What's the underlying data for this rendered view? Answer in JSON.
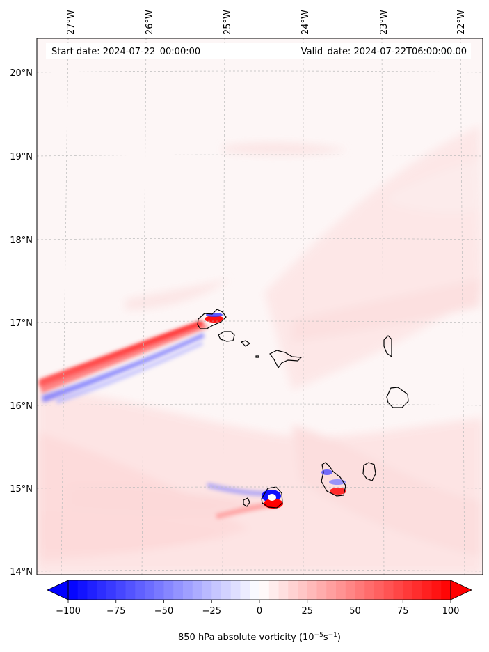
{
  "header": {
    "start_label": "Start date: 2024-07-22_00:00:00",
    "valid_label": "Valid_date: 2024-07-22T06:00:00.00"
  },
  "axes": {
    "lon_labels": [
      "27°W",
      "26°W",
      "25°W",
      "24°W",
      "23°W",
      "22°W"
    ],
    "lat_labels": [
      "20°N",
      "19°N",
      "18°N",
      "17°N",
      "16°N",
      "15°N",
      "14°N"
    ],
    "grid": true
  },
  "colorbar": {
    "ticks": [
      "−100",
      "−75",
      "−50",
      "−25",
      "0",
      "25",
      "50",
      "75",
      "100"
    ],
    "label_main": "850 hPa absolute vorticity (10",
    "label_sup1": "−5",
    "label_mid": "s",
    "label_sup2": "−1",
    "label_end": ")",
    "cmap": "bwr",
    "vmin": -100,
    "vmax": 100,
    "extend": "both",
    "colors": {
      "low": "#0000ff",
      "mid": "#ffffff",
      "high": "#ff0000"
    }
  },
  "map": {
    "background_color": "#fdf6f6",
    "coastline_color": "#000000",
    "islands": [
      "Santo Antão",
      "São Vicente",
      "Santa Luzia",
      "São Nicolau",
      "Sal",
      "Boa Vista",
      "Fogo",
      "Brava",
      "Santiago",
      "Maio"
    ]
  }
}
